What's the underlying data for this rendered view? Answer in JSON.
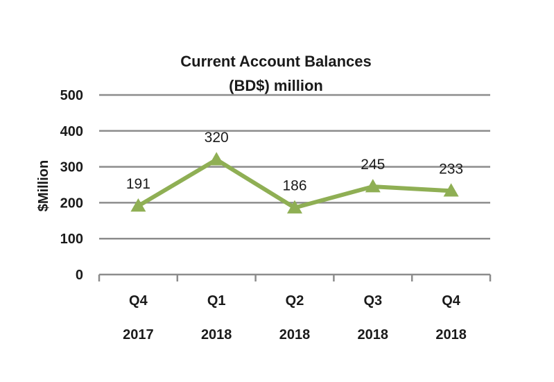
{
  "chart_data": {
    "type": "line",
    "title": [
      "Current Account Balances",
      "(BD$) million"
    ],
    "ylabel": "$Million",
    "xlabel": "",
    "ylim": [
      0,
      500
    ],
    "yticks": [
      "0",
      "100",
      "200",
      "300",
      "400",
      "500"
    ],
    "categories": [
      {
        "quarter": "Q4",
        "year": "2017"
      },
      {
        "quarter": "Q1",
        "year": "2018"
      },
      {
        "quarter": "Q2",
        "year": "2018"
      },
      {
        "quarter": "Q3",
        "year": "2018"
      },
      {
        "quarter": "Q4",
        "year": "2018"
      }
    ],
    "series": [
      {
        "values": [
          191,
          320,
          186,
          245,
          233
        ],
        "color": "#8faf54",
        "marker": "triangle"
      }
    ],
    "data_labels": [
      "191",
      "320",
      "186",
      "245",
      "233"
    ],
    "grid": true,
    "legend": "none"
  }
}
